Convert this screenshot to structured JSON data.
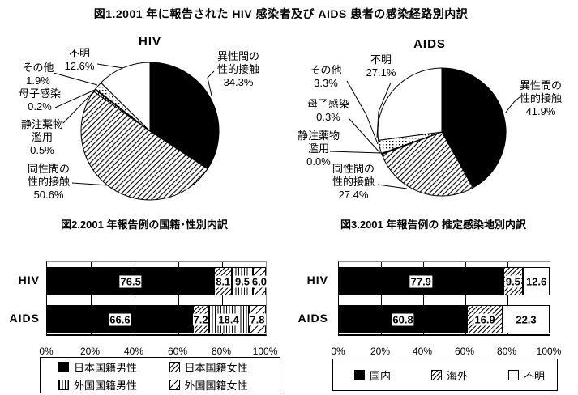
{
  "fig1": {
    "title": "図1.2001 年に報告された HIV 感染者及び AIDS 患者の感染経路別内訳"
  },
  "colors": {
    "foreground": "#000000",
    "background": "#ffffff"
  },
  "chart_data": [
    {
      "type": "pie",
      "title": "HIV",
      "unit": "%",
      "start": "12 o'clock, clockwise",
      "labels": [
        "異性間の性的接触",
        "同性間の性的接触",
        "静注薬物濫用",
        "母子感染",
        "その他",
        "不明"
      ],
      "values": [
        34.3,
        50.6,
        0.5,
        0.2,
        1.9,
        12.6
      ],
      "pct_labels": [
        "34.3%",
        "50.6%",
        "0.5%",
        "0.2%",
        "1.9%",
        "12.6%"
      ],
      "patterns": [
        "black",
        "hatch",
        "vlines",
        "black",
        "dots",
        "white"
      ]
    },
    {
      "type": "pie",
      "title": "AIDS",
      "unit": "%",
      "start": "12 o'clock, clockwise",
      "labels": [
        "異性間の性的接触",
        "同性間の性的接触",
        "静注薬物濫用",
        "母子感染",
        "その他",
        "不明"
      ],
      "values": [
        41.9,
        27.4,
        0.0,
        0.3,
        3.3,
        27.1
      ],
      "pct_labels": [
        "41.9%",
        "27.4%",
        "0.0%",
        "0.3%",
        "3.3%",
        "27.1%"
      ],
      "patterns": [
        "black",
        "hatch",
        "vlines",
        "black",
        "dots",
        "white"
      ]
    },
    {
      "type": "bar",
      "title": "図2.2001 年報告例の国籍･性別内訳",
      "orientation": "horizontal-stacked",
      "unit": "%",
      "categories": [
        "HIV",
        "AIDS"
      ],
      "series": [
        {
          "name": "日本国籍男性",
          "pattern": "black",
          "values": [
            76.5,
            66.6
          ]
        },
        {
          "name": "日本国籍女性",
          "pattern": "hatch",
          "values": [
            8.1,
            7.2
          ]
        },
        {
          "name": "外国国籍男性",
          "pattern": "vlines",
          "values": [
            9.5,
            18.4
          ]
        },
        {
          "name": "外国国籍女性",
          "pattern": "hatch-light",
          "values": [
            6.0,
            7.8
          ]
        }
      ],
      "xlim": [
        0,
        100
      ],
      "x_ticks": [
        "0%",
        "20%",
        "40%",
        "60%",
        "80%",
        "100%"
      ],
      "grid": true,
      "legend_position": "bottom"
    },
    {
      "type": "bar",
      "title": "図3.2001 年報告例の 推定感染地別内訳",
      "orientation": "horizontal-stacked",
      "unit": "%",
      "categories": [
        "HIV",
        "AIDS"
      ],
      "series": [
        {
          "name": "国内",
          "pattern": "black",
          "values": [
            77.9,
            60.8
          ]
        },
        {
          "name": "海外",
          "pattern": "hatch",
          "values": [
            9.5,
            16.9
          ]
        },
        {
          "name": "不明",
          "pattern": "white",
          "values": [
            12.6,
            22.3
          ]
        }
      ],
      "xlim": [
        0,
        100
      ],
      "x_ticks": [
        "0%",
        "20%",
        "40%",
        "60%",
        "80%",
        "100%"
      ],
      "grid": true,
      "legend_position": "bottom"
    }
  ]
}
